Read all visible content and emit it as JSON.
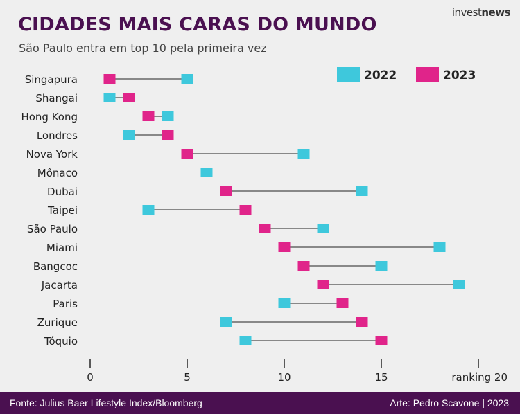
{
  "header": {
    "title": "CIDADES MAIS CARAS DO MUNDO",
    "subtitle": "São Paulo entra em top 10 pela primeira vez",
    "brand_light": "invest",
    "brand_bold": "news"
  },
  "footer": {
    "source": "Fonte: Julius Baer Lifestyle Index/Bloomberg",
    "credit": "Arte: Pedro Scavone | 2023"
  },
  "colors": {
    "title": "#4a1050",
    "series_2022": "#3ec8dc",
    "series_2023": "#e0248a",
    "connector": "#666666",
    "background": "#efefef",
    "footer_bg": "#4a1050"
  },
  "chart_data": {
    "type": "dumbbell",
    "x_axis": {
      "range": [
        0,
        20
      ],
      "ticks": [
        0,
        5,
        10,
        15,
        20
      ],
      "tick_labels": [
        "0",
        "5",
        "10",
        "15",
        "ranking 20"
      ]
    },
    "legend": {
      "position": "top-right"
    },
    "series": [
      {
        "name": "2022",
        "color": "#3ec8dc"
      },
      {
        "name": "2023",
        "color": "#e0248a"
      }
    ],
    "cities": [
      {
        "name": "Singapura",
        "y2022": 5,
        "y2023": 1
      },
      {
        "name": "Shangai",
        "y2022": 1,
        "y2023": 2
      },
      {
        "name": "Hong Kong",
        "y2022": 4,
        "y2023": 3
      },
      {
        "name": "Londres",
        "y2022": 2,
        "y2023": 4
      },
      {
        "name": "Nova York",
        "y2022": 11,
        "y2023": 5
      },
      {
        "name": "Mônaco",
        "y2022": 6,
        "y2023": 6
      },
      {
        "name": "Dubai",
        "y2022": 14,
        "y2023": 7
      },
      {
        "name": "Taipei",
        "y2022": 3,
        "y2023": 8
      },
      {
        "name": "São Paulo",
        "y2022": 12,
        "y2023": 9
      },
      {
        "name": "Miami",
        "y2022": 18,
        "y2023": 10
      },
      {
        "name": "Bangcoc",
        "y2022": 15,
        "y2023": 11
      },
      {
        "name": "Jacarta",
        "y2022": 19,
        "y2023": 12
      },
      {
        "name": "Paris",
        "y2022": 10,
        "y2023": 13
      },
      {
        "name": "Zurique",
        "y2022": 7,
        "y2023": 14
      },
      {
        "name": "Tóquio",
        "y2022": 8,
        "y2023": 15
      }
    ]
  }
}
